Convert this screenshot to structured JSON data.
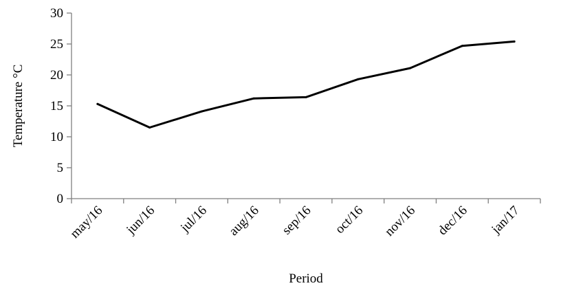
{
  "chart_data": {
    "type": "line",
    "title": "",
    "xlabel": "Period",
    "ylabel": "Temperature °C",
    "categories": [
      "may/16",
      "jun/16",
      "jul/16",
      "aug/16",
      "sep/16",
      "oct/16",
      "nov/16",
      "dec/16",
      "jan/17"
    ],
    "series": [
      {
        "values": [
          15.3,
          11.5,
          14.1,
          16.2,
          16.4,
          19.3,
          21.1,
          24.7,
          25.4
        ],
        "color": "#000000"
      }
    ],
    "ylim": [
      0,
      30
    ],
    "yticks": [
      0,
      5,
      10,
      15,
      20,
      25,
      30
    ],
    "grid": false,
    "legend": "none"
  }
}
